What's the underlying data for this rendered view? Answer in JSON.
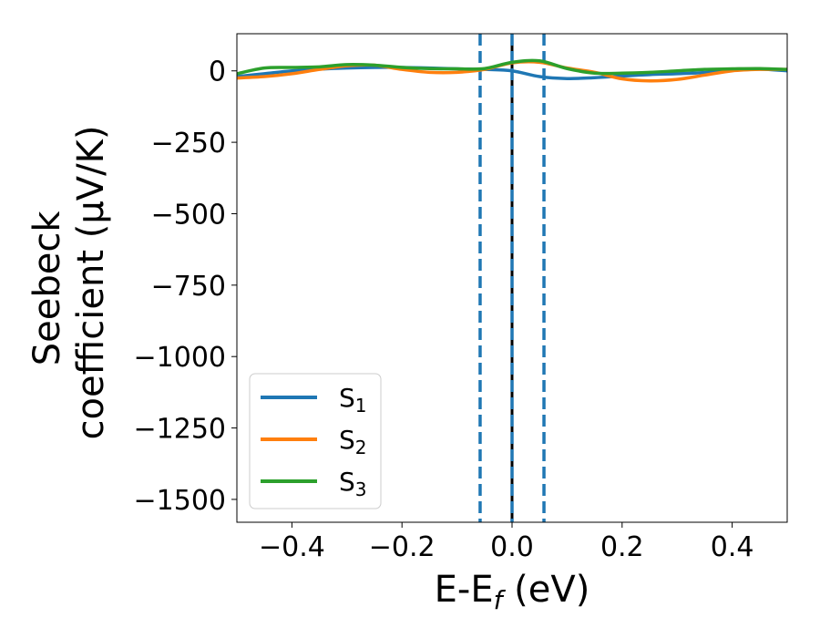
{
  "chart_data": {
    "type": "line",
    "title": "",
    "xlabel": "E-E_f (eV)",
    "ylabel_lines": [
      "Seebeck",
      "coefficient  (μV/K)"
    ],
    "xlim": [
      -0.5,
      0.5
    ],
    "ylim": [
      -1580,
      130
    ],
    "xticks": [
      -0.4,
      -0.2,
      0.0,
      0.2,
      0.4
    ],
    "xtick_labels": [
      "−0.4",
      "−0.2",
      "0.0",
      "0.2",
      "0.4"
    ],
    "yticks": [
      0,
      -250,
      -500,
      -750,
      -1000,
      -1250,
      -1500
    ],
    "ytick_labels": [
      "0",
      "−250",
      "−500",
      "−750",
      "−1000",
      "−1250",
      "−1500"
    ],
    "grid": false,
    "legend_position": "lower-left",
    "series": [
      {
        "name": "S1",
        "label_base": "S",
        "label_sub": "1",
        "color": "#1f77b4",
        "x": [
          -0.5,
          -0.45,
          -0.4,
          -0.35,
          -0.3,
          -0.25,
          -0.2,
          -0.15,
          -0.1,
          -0.05,
          0.0,
          0.05,
          0.1,
          0.15,
          0.2,
          0.25,
          0.3,
          0.35,
          0.4,
          0.45,
          0.5
        ],
        "y": [
          -20,
          -10,
          0,
          6,
          10,
          12,
          12,
          10,
          7,
          5,
          0,
          -20,
          -27,
          -24,
          -18,
          -13,
          -10,
          -6,
          2,
          6,
          0
        ]
      },
      {
        "name": "S2",
        "label_base": "S",
        "label_sub": "2",
        "color": "#ff7f0e",
        "x": [
          -0.5,
          -0.45,
          -0.4,
          -0.35,
          -0.3,
          -0.25,
          -0.2,
          -0.15,
          -0.1,
          -0.05,
          0.0,
          0.05,
          0.1,
          0.15,
          0.2,
          0.25,
          0.3,
          0.35,
          0.4,
          0.45,
          0.5
        ],
        "y": [
          -25,
          -20,
          -10,
          5,
          18,
          20,
          5,
          -5,
          -5,
          5,
          28,
          30,
          10,
          -5,
          -28,
          -35,
          -30,
          -15,
          0,
          5,
          5
        ]
      },
      {
        "name": "S3",
        "label_base": "S",
        "label_sub": "3",
        "color": "#2ca02c",
        "x": [
          -0.5,
          -0.45,
          -0.4,
          -0.35,
          -0.3,
          -0.25,
          -0.2,
          -0.15,
          -0.1,
          -0.05,
          0.0,
          0.05,
          0.1,
          0.15,
          0.2,
          0.25,
          0.3,
          0.35,
          0.4,
          0.45,
          0.5
        ],
        "y": [
          -10,
          10,
          12,
          14,
          22,
          20,
          12,
          8,
          7,
          8,
          30,
          35,
          8,
          -8,
          -8,
          -5,
          0,
          5,
          7,
          8,
          5
        ]
      }
    ],
    "vertical_lines": [
      {
        "x": -0.058,
        "color": "#1f77b4",
        "style": "dashed"
      },
      {
        "x": 0.0,
        "color": "#000000",
        "style": "solid"
      },
      {
        "x": 0.0,
        "color": "#1f77b4",
        "style": "dashed"
      },
      {
        "x": 0.058,
        "color": "#1f77b4",
        "style": "dashed"
      }
    ]
  }
}
